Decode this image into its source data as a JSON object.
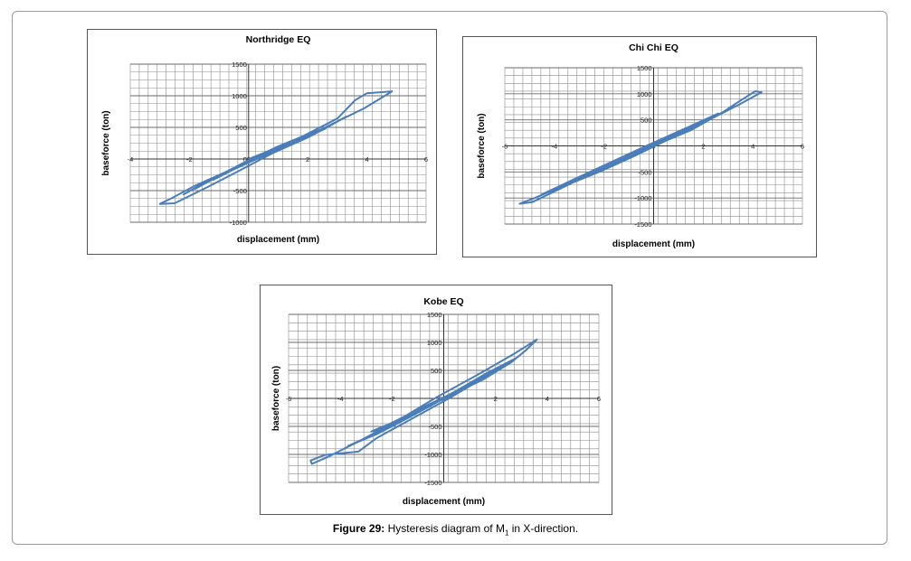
{
  "colors": {
    "series": "#4a7ebb",
    "grid": "#8c8c8c",
    "frame": "#9a9a9a"
  },
  "caption": {
    "label": "Figure 29:",
    "text_before": " Hysteresis diagram of M",
    "subscript": "1",
    "text_after": " in X-direction."
  },
  "chart_data": [
    {
      "type": "line",
      "title": "Northridge EQ",
      "xlabel": "displacement (mm)",
      "ylabel": "baseforce (ton)",
      "xlim": [
        -4,
        6
      ],
      "ylim": [
        -1000,
        1500
      ],
      "xticks": [
        -4,
        -2,
        0,
        2,
        4,
        6
      ],
      "yticks": [
        -1000,
        -500,
        0,
        500,
        1000,
        1500
      ],
      "xtick_labels": [
        "-4",
        "-2",
        "0",
        "2",
        "4",
        "6"
      ],
      "ytick_labels": [
        "-1000",
        "-500",
        "0",
        "500",
        "1000",
        "1500"
      ],
      "grid": true,
      "series": [
        {
          "values": [
            [
              0,
              0
            ],
            [
              1.5,
              280
            ],
            [
              3.0,
              640
            ],
            [
              3.6,
              930
            ],
            [
              4.0,
              1040
            ],
            [
              4.85,
              1070
            ],
            [
              3.9,
              800
            ],
            [
              2.5,
              480
            ],
            [
              1.0,
              180
            ],
            [
              -0.5,
              -150
            ],
            [
              -1.8,
              -420
            ],
            [
              -2.6,
              -620
            ],
            [
              -3.0,
              -710
            ],
            [
              -2.5,
              -700
            ],
            [
              -1.5,
              -470
            ],
            [
              -0.5,
              -230
            ],
            [
              0.8,
              90
            ],
            [
              2.0,
              340
            ],
            [
              2.8,
              540
            ],
            [
              3.3,
              670
            ],
            [
              2.3,
              420
            ],
            [
              1.0,
              150
            ],
            [
              -0.3,
              -120
            ],
            [
              -1.5,
              -380
            ],
            [
              -2.2,
              -560
            ],
            [
              -1.4,
              -350
            ],
            [
              -0.3,
              -100
            ],
            [
              0.8,
              120
            ],
            [
              1.8,
              310
            ],
            [
              2.6,
              480
            ],
            [
              1.6,
              270
            ],
            [
              0.4,
              30
            ],
            [
              -0.8,
              -220
            ],
            [
              -1.8,
              -470
            ],
            [
              -1.0,
              -260
            ],
            [
              0.0,
              -20
            ],
            [
              1.0,
              200
            ],
            [
              2.2,
              430
            ],
            [
              1.0,
              160
            ],
            [
              -0.4,
              -140
            ],
            [
              -1.2,
              -330
            ],
            [
              -0.3,
              -100
            ],
            [
              0.9,
              150
            ],
            [
              0.2,
              0
            ]
          ]
        }
      ]
    },
    {
      "type": "line",
      "title": "Chi Chi EQ",
      "xlabel": "displacement (mm)",
      "ylabel": "baseforce (ton)",
      "xlim": [
        -6,
        6
      ],
      "ylim": [
        -1500,
        1500
      ],
      "xticks": [
        -6,
        -4,
        -2,
        0,
        2,
        4,
        6
      ],
      "yticks": [
        -1500,
        -1000,
        -500,
        0,
        500,
        1000,
        1500
      ],
      "xtick_labels": [
        "-6",
        "-4",
        "-2",
        "0",
        "2",
        "4",
        "6"
      ],
      "ytick_labels": [
        "-1500",
        "-1000",
        "-500",
        "0",
        "500",
        "1000",
        "1500"
      ],
      "grid": true,
      "series": [
        {
          "values": [
            [
              0,
              0
            ],
            [
              1.5,
              300
            ],
            [
              2.8,
              650
            ],
            [
              3.6,
              900
            ],
            [
              4.1,
              1050
            ],
            [
              4.35,
              1030
            ],
            [
              3.4,
              780
            ],
            [
              2.0,
              470
            ],
            [
              0.5,
              120
            ],
            [
              -1.0,
              -230
            ],
            [
              -2.5,
              -520
            ],
            [
              -3.8,
              -800
            ],
            [
              -4.8,
              -1000
            ],
            [
              -5.4,
              -1110
            ],
            [
              -4.9,
              -1080
            ],
            [
              -3.5,
              -760
            ],
            [
              -2.0,
              -420
            ],
            [
              -0.5,
              -80
            ],
            [
              1.0,
              240
            ],
            [
              2.4,
              540
            ],
            [
              3.3,
              760
            ],
            [
              2.2,
              500
            ],
            [
              0.8,
              170
            ],
            [
              -0.8,
              -200
            ],
            [
              -2.2,
              -500
            ],
            [
              -3.4,
              -730
            ],
            [
              -4.5,
              -930
            ],
            [
              -3.3,
              -660
            ],
            [
              -1.8,
              -330
            ],
            [
              -0.2,
              20
            ],
            [
              1.3,
              340
            ],
            [
              2.6,
              620
            ],
            [
              1.4,
              330
            ],
            [
              0.0,
              0
            ],
            [
              -1.5,
              -350
            ],
            [
              -3.0,
              -640
            ],
            [
              -4.0,
              -840
            ],
            [
              -2.8,
              -560
            ],
            [
              -1.2,
              -200
            ],
            [
              0.4,
              140
            ],
            [
              1.8,
              420
            ],
            [
              0.6,
              140
            ],
            [
              -0.9,
              -220
            ],
            [
              -2.4,
              -520
            ],
            [
              -1.4,
              -290
            ],
            [
              0.2,
              60
            ],
            [
              1.2,
              280
            ],
            [
              0.0,
              -10
            ],
            [
              -1.2,
              -280
            ],
            [
              -0.2,
              0
            ],
            [
              0.6,
              130
            ]
          ]
        }
      ]
    },
    {
      "type": "line",
      "title": "Kobe EQ",
      "xlabel": "displacement (mm)",
      "ylabel": "baseforce (ton)",
      "xlim": [
        -6,
        6
      ],
      "ylim": [
        -1500,
        1500
      ],
      "xticks": [
        -6,
        -4,
        -2,
        0,
        2,
        4,
        6
      ],
      "yticks": [
        -1500,
        -1000,
        -500,
        0,
        500,
        1000,
        1500
      ],
      "xtick_labels": [
        "-6",
        "-4",
        "-2",
        "0",
        "2",
        "4",
        "6"
      ],
      "ytick_labels": [
        "-1500",
        "-1000",
        "-500",
        "0",
        "500",
        "1000",
        "1500"
      ],
      "grid": true,
      "series": [
        {
          "values": [
            [
              0,
              0
            ],
            [
              1.5,
              330
            ],
            [
              2.6,
              640
            ],
            [
              3.2,
              870
            ],
            [
              3.6,
              1050
            ],
            [
              2.7,
              790
            ],
            [
              1.3,
              420
            ],
            [
              -0.2,
              40
            ],
            [
              -1.8,
              -400
            ],
            [
              -3.3,
              -770
            ],
            [
              -4.5,
              -1050
            ],
            [
              -5.1,
              -1170
            ],
            [
              -5.15,
              -1110
            ],
            [
              -4.6,
              -1010
            ],
            [
              -3.3,
              -950
            ],
            [
              -2.6,
              -710
            ],
            [
              -1.3,
              -380
            ],
            [
              0.2,
              0
            ],
            [
              1.6,
              380
            ],
            [
              2.8,
              720
            ],
            [
              1.7,
              460
            ],
            [
              0.2,
              60
            ],
            [
              -1.3,
              -330
            ],
            [
              -2.6,
              -640
            ],
            [
              -3.7,
              -850
            ],
            [
              -2.5,
              -600
            ],
            [
              -0.9,
              -200
            ],
            [
              0.8,
              210
            ],
            [
              2.2,
              560
            ],
            [
              1.0,
              260
            ],
            [
              -0.5,
              -130
            ],
            [
              -2.0,
              -500
            ],
            [
              -2.8,
              -590
            ],
            [
              -1.6,
              -360
            ],
            [
              0.0,
              -10
            ],
            [
              1.3,
              320
            ],
            [
              0.2,
              60
            ],
            [
              -1.4,
              -330
            ],
            [
              -2.2,
              -480
            ],
            [
              -0.9,
              -180
            ],
            [
              0.6,
              150
            ],
            [
              -0.4,
              -90
            ],
            [
              -1.3,
              -280
            ],
            [
              0.3,
              60
            ]
          ]
        }
      ]
    }
  ]
}
